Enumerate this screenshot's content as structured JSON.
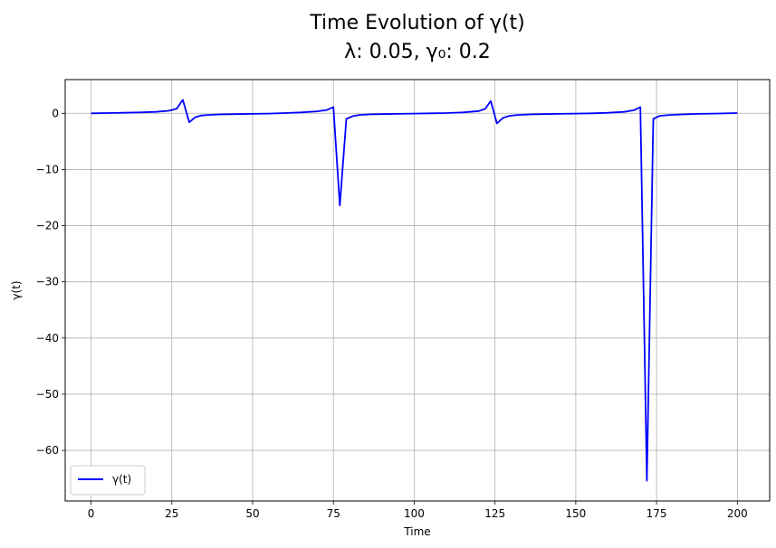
{
  "chart_data": {
    "type": "line",
    "title_line1": "Time Evolution of γ(t)",
    "title_line2": "λ: 0.05, γ₀: 0.2",
    "xlabel": "Time",
    "ylabel": "γ(t)",
    "xlim": [
      -8,
      210
    ],
    "ylim": [
      -69,
      6
    ],
    "xticks": [
      0,
      25,
      50,
      75,
      100,
      125,
      150,
      175,
      200
    ],
    "xtick_labels": [
      "0",
      "25",
      "50",
      "75",
      "100",
      "125",
      "150",
      "175",
      "200"
    ],
    "yticks": [
      0,
      -10,
      -20,
      -30,
      -40,
      -50,
      -60
    ],
    "ytick_labels": [
      "0",
      "−10",
      "−20",
      "−30",
      "−40",
      "−50",
      "−60"
    ],
    "grid": true,
    "legend_position": "lower-left",
    "series": [
      {
        "name": "γ(t)",
        "color": "#0000ff",
        "x": [
          0,
          5,
          10,
          15,
          20,
          24,
          26.5,
          28.4,
          30.4,
          32.3,
          34,
          36,
          40,
          45,
          50,
          55,
          60,
          65,
          70,
          73,
          75,
          77,
          79,
          81,
          83,
          86,
          90,
          95,
          100,
          105,
          110,
          115,
          120,
          122,
          123.7,
          125.6,
          127.5,
          129.5,
          132,
          136,
          140,
          145,
          150,
          155,
          160,
          165,
          168,
          170,
          172,
          174,
          176,
          179,
          183,
          188,
          193,
          200
        ],
        "y": [
          0,
          0.05,
          0.1,
          0.15,
          0.25,
          0.45,
          0.8,
          2.4,
          -1.6,
          -0.7,
          -0.4,
          -0.3,
          -0.2,
          -0.15,
          -0.1,
          -0.05,
          0.05,
          0.15,
          0.35,
          0.6,
          1.1,
          -16.4,
          -1.0,
          -0.5,
          -0.3,
          -0.2,
          -0.15,
          -0.1,
          -0.05,
          0.0,
          0.05,
          0.15,
          0.4,
          0.8,
          2.2,
          -1.8,
          -0.8,
          -0.45,
          -0.3,
          -0.2,
          -0.15,
          -0.1,
          -0.05,
          0.0,
          0.1,
          0.25,
          0.55,
          1.1,
          -65.4,
          -1.0,
          -0.45,
          -0.3,
          -0.2,
          -0.1,
          -0.05,
          0.05
        ]
      }
    ]
  }
}
